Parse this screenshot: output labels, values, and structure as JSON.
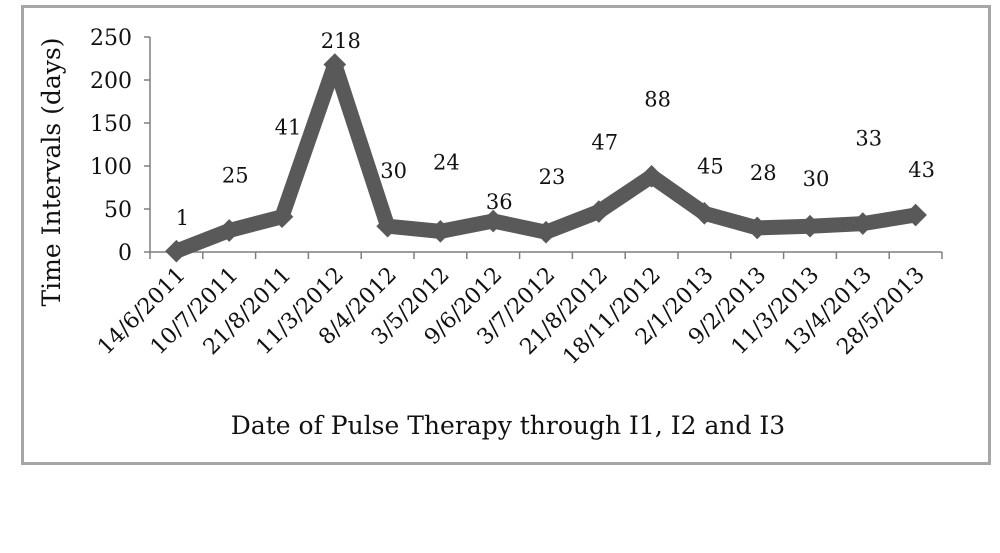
{
  "chart_data": {
    "type": "line",
    "title": "",
    "xlabel": "Date of Pulse Therapy through I1, I2 and I3",
    "ylabel": "Time Intervals (days)",
    "ylim": [
      0,
      250
    ],
    "yticks": [
      0,
      50,
      100,
      150,
      200,
      250
    ],
    "grid": false,
    "legend": "none",
    "categories": [
      "14/6/2011",
      "10/7/2011",
      "21/8/2011",
      "11/3/2012",
      "8/4/2012",
      "3/5/2012",
      "9/6/2012",
      "3/7/2012",
      "21/8/2012",
      "18/11/2012",
      "2/1/2013",
      "9/2/2013",
      "11/3/2013",
      "13/4/2013",
      "28/5/2013"
    ],
    "series": [
      {
        "values": [
          1,
          25,
          41,
          218,
          30,
          24,
          36,
          23,
          47,
          88,
          45,
          28,
          30,
          33,
          43
        ],
        "data_labels": [
          "1",
          "25",
          "41",
          "218",
          "30",
          "24",
          "36",
          "23",
          "47",
          "88",
          "45",
          "28",
          "30",
          "33",
          "43"
        ],
        "color": "#595959"
      }
    ]
  }
}
